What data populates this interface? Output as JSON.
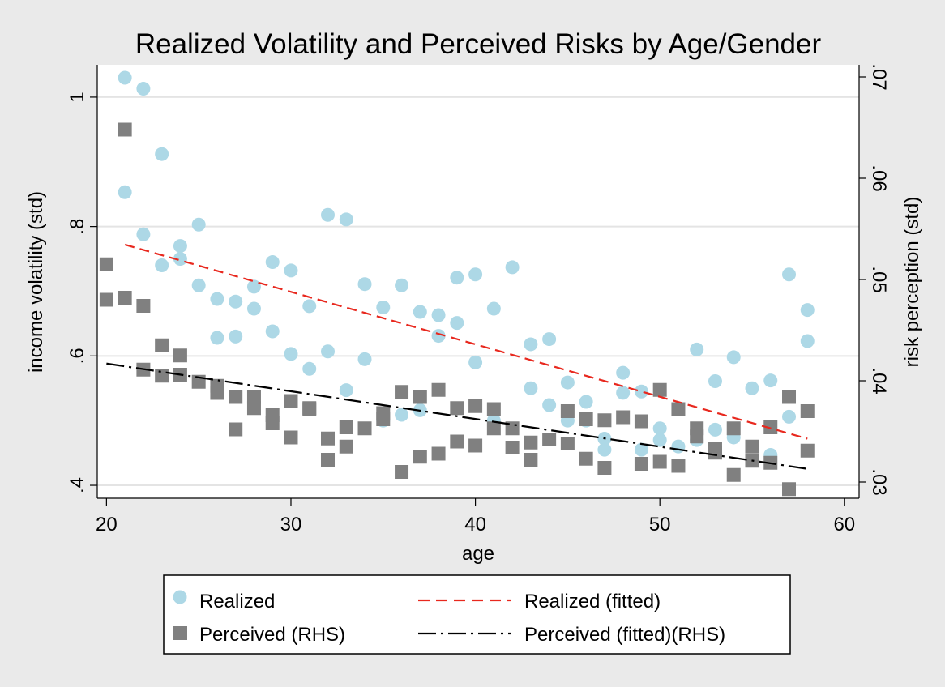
{
  "chart_data": {
    "type": "scatter",
    "title": "Realized Volatility and Perceived Risks by Age/Gender",
    "xlabel": "age",
    "ylabel": "income volatility (std)",
    "y2label": "risk perception (std)",
    "xlim": [
      19.5,
      60.8
    ],
    "ylim": [
      0.38,
      1.05
    ],
    "y2lim": [
      0.0284,
      0.0712
    ],
    "x_ticks": [
      20,
      30,
      40,
      50,
      60
    ],
    "x_tick_labels": [
      "20",
      "30",
      "40",
      "50",
      "60"
    ],
    "y_ticks": [
      0.4,
      0.6,
      0.8,
      1
    ],
    "y_tick_labels": [
      ".4",
      ".6",
      ".8",
      "1"
    ],
    "y2_ticks": [
      0.03,
      0.04,
      0.05,
      0.06,
      0.07
    ],
    "y2_tick_labels": [
      ".03",
      ".04",
      ".05",
      ".06",
      ".07"
    ],
    "grid": true,
    "legend_position": "bottom",
    "colors": {
      "background": "#eaeaea",
      "plot_area": "#ffffff",
      "realized": "#add8e6",
      "perceived": "#808080",
      "realized_fit": "#e8281e",
      "perceived_fit": "#000000",
      "grid": "#e4e4e4"
    },
    "series": [
      {
        "name": "Realized",
        "axis": "left",
        "marker": "circle",
        "x": [
          21,
          21,
          22,
          22,
          23,
          23,
          24,
          24,
          25,
          25,
          26,
          26,
          27,
          27,
          28,
          28,
          29,
          29,
          30,
          30,
          31,
          31,
          32,
          32,
          33,
          33,
          34,
          34,
          35,
          35,
          36,
          36,
          37,
          37,
          38,
          38,
          39,
          39,
          40,
          40,
          41,
          41,
          42,
          43,
          43,
          44,
          44,
          45,
          45,
          46,
          46,
          47,
          47,
          48,
          48,
          49,
          49,
          50,
          50,
          51,
          52,
          52,
          53,
          53,
          54,
          54,
          55,
          56,
          56,
          57,
          57,
          58,
          58
        ],
        "y": [
          1.03,
          0.853,
          1.013,
          0.788,
          0.912,
          0.74,
          0.77,
          0.75,
          0.709,
          0.803,
          0.688,
          0.628,
          0.684,
          0.63,
          0.707,
          0.673,
          0.745,
          0.638,
          0.732,
          0.603,
          0.677,
          0.58,
          0.818,
          0.607,
          0.811,
          0.547,
          0.711,
          0.595,
          0.675,
          0.5,
          0.709,
          0.509,
          0.668,
          0.516,
          0.663,
          0.631,
          0.721,
          0.651,
          0.726,
          0.59,
          0.673,
          0.5,
          0.737,
          0.618,
          0.55,
          0.626,
          0.524,
          0.559,
          0.5,
          0.529,
          0.5,
          0.472,
          0.455,
          0.574,
          0.543,
          0.545,
          0.455,
          0.488,
          0.47,
          0.46,
          0.61,
          0.47,
          0.561,
          0.486,
          0.598,
          0.474,
          0.55,
          0.562,
          0.447,
          0.726,
          0.506,
          0.671,
          0.623
        ]
      },
      {
        "name": "Perceived (RHS)",
        "axis": "right",
        "marker": "square",
        "x": [
          20,
          20,
          21,
          21,
          22,
          22,
          23,
          23,
          24,
          24,
          25,
          26,
          26,
          27,
          27,
          28,
          28,
          29,
          29,
          30,
          30,
          31,
          31,
          32,
          32,
          33,
          33,
          34,
          35,
          35,
          36,
          36,
          37,
          37,
          38,
          38,
          39,
          39,
          40,
          40,
          41,
          41,
          42,
          42,
          43,
          43,
          44,
          45,
          45,
          46,
          46,
          47,
          47,
          48,
          49,
          49,
          50,
          50,
          51,
          51,
          52,
          52,
          53,
          53,
          54,
          54,
          55,
          55,
          56,
          56,
          57,
          57,
          58,
          58
        ],
        "y": [
          0.0515,
          0.048,
          0.0648,
          0.0482,
          0.0411,
          0.0474,
          0.0405,
          0.0435,
          0.0406,
          0.0425,
          0.0399,
          0.0388,
          0.0395,
          0.0384,
          0.0352,
          0.0384,
          0.0373,
          0.0358,
          0.0366,
          0.038,
          0.0344,
          0.0373,
          0.0372,
          0.0322,
          0.0343,
          0.0335,
          0.0354,
          0.0353,
          0.0362,
          0.0368,
          0.031,
          0.0389,
          0.0325,
          0.0384,
          0.0328,
          0.0391,
          0.034,
          0.0373,
          0.0336,
          0.0375,
          0.0353,
          0.0372,
          0.0334,
          0.0353,
          0.0322,
          0.0339,
          0.0342,
          0.0338,
          0.037,
          0.0323,
          0.0362,
          0.0314,
          0.0361,
          0.0364,
          0.0318,
          0.036,
          0.032,
          0.0391,
          0.0316,
          0.0372,
          0.0345,
          0.0353,
          0.0333,
          0.0329,
          0.0307,
          0.0353,
          0.0335,
          0.0321,
          0.0319,
          0.0354,
          0.0293,
          0.0384,
          0.0331,
          0.037
        ]
      },
      {
        "name": "Realized (fitted)",
        "axis": "left",
        "type": "line",
        "style": "dashed",
        "x": [
          21,
          58
        ],
        "y": [
          0.772,
          0.472
        ]
      },
      {
        "name": "Perceived (fitted)(RHS)",
        "axis": "right",
        "type": "line",
        "style": "dash-dot",
        "x": [
          20,
          58
        ],
        "y": [
          0.0417,
          0.0313
        ]
      }
    ]
  }
}
